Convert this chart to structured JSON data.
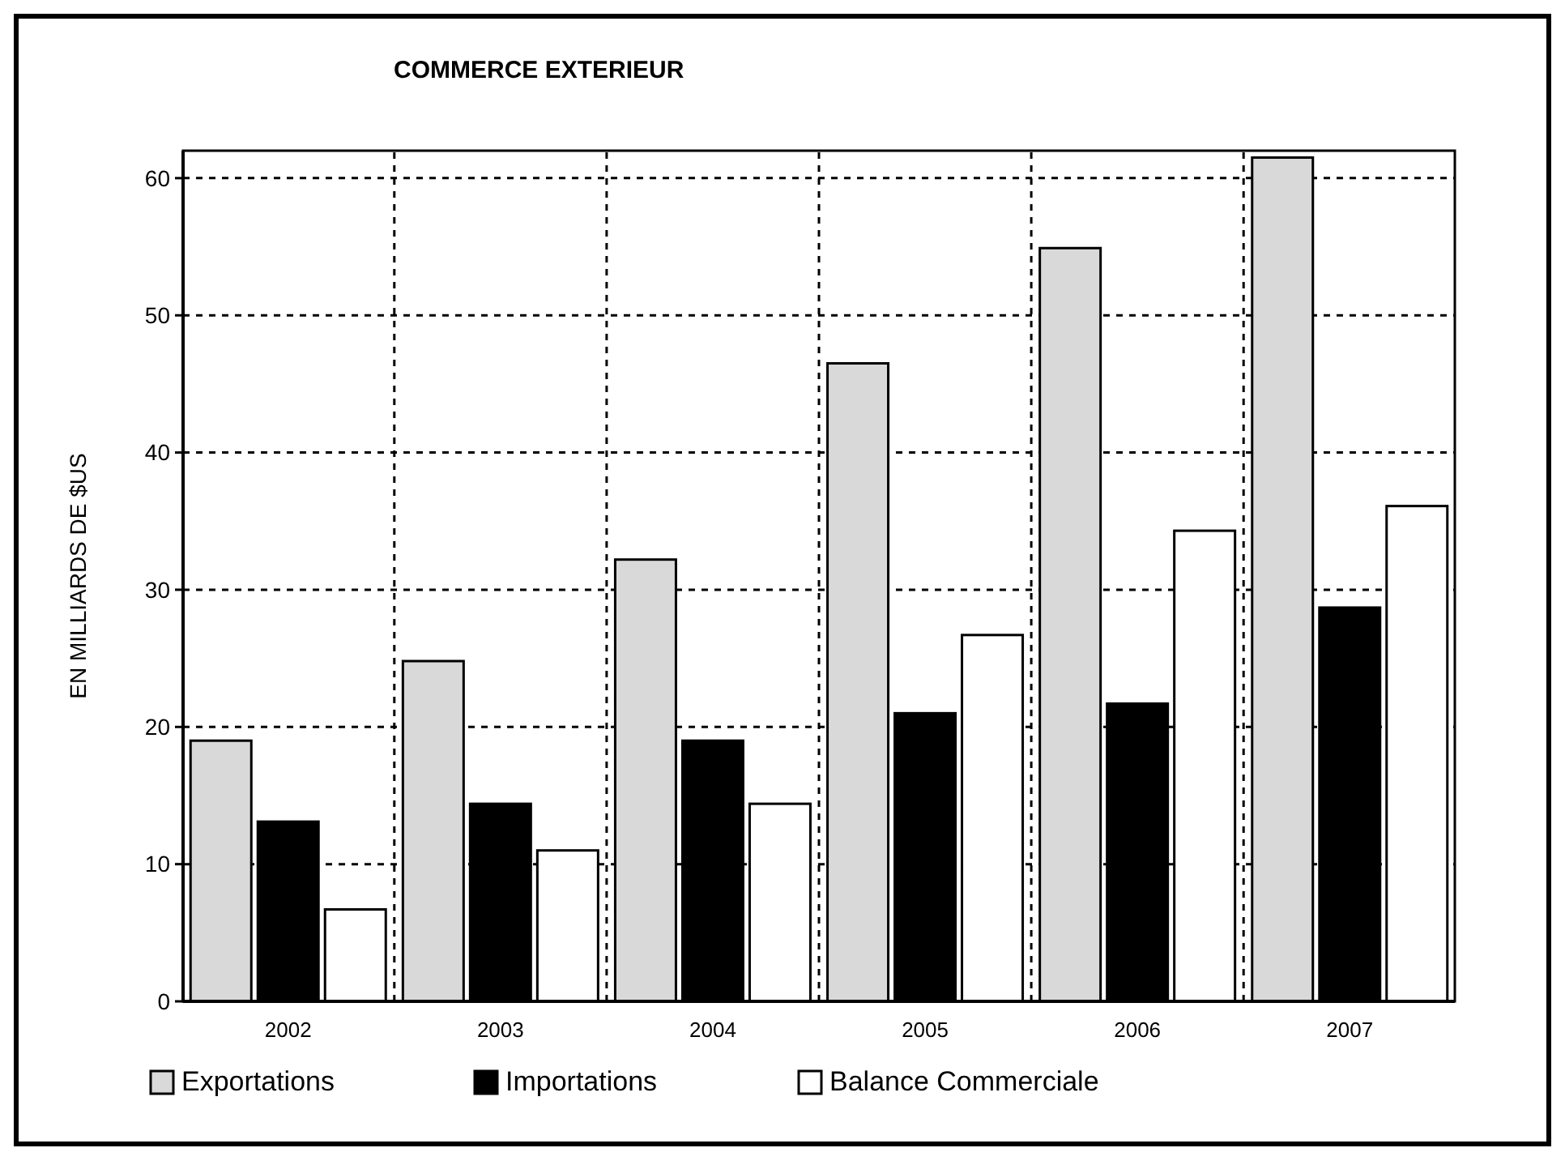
{
  "chart_data": {
    "type": "bar",
    "title": "COMMERCE EXTERIEUR",
    "ylabel": "EN MILLIARDS DE $US",
    "categories": [
      "2002",
      "2003",
      "2004",
      "2005",
      "2006",
      "2007"
    ],
    "series": [
      {
        "name": "Exportations",
        "color": "#d9d9d9",
        "values": [
          19.0,
          24.8,
          32.2,
          46.5,
          54.9,
          61.5
        ]
      },
      {
        "name": "Importations",
        "color": "#000000",
        "values": [
          13.1,
          14.4,
          19.0,
          21.0,
          21.7,
          28.7
        ]
      },
      {
        "name": "Balance Commerciale",
        "color": "#ffffff",
        "values": [
          6.7,
          11.0,
          14.4,
          26.7,
          34.3,
          36.1
        ]
      }
    ],
    "ylim": [
      0,
      62
    ],
    "yticks": [
      0,
      10,
      20,
      30,
      40,
      50,
      60
    ],
    "grid": true,
    "legend": "bottom"
  }
}
